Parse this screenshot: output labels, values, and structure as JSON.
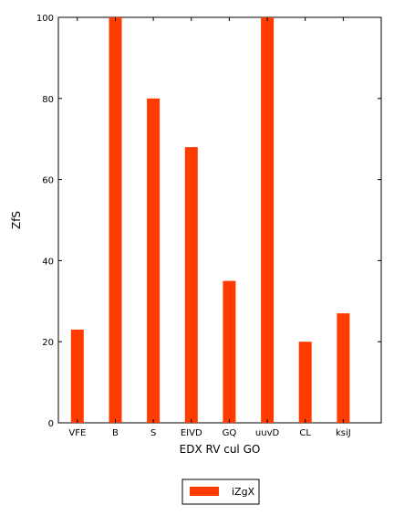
{
  "chart_data": {
    "type": "bar",
    "categories": [
      "VFE",
      "B",
      "S",
      "EIVD",
      "GQ",
      "uuvD",
      "CL",
      "ksiJ"
    ],
    "series": [
      {
        "name": "iZgX",
        "values": [
          23,
          100,
          80,
          68,
          35,
          100,
          20,
          27
        ],
        "color": "#ff3b00"
      }
    ],
    "xlabel": "EDX RV cul GO",
    "ylabel": "ZfS",
    "ylim": [
      0,
      100
    ],
    "yticks": [
      0,
      20,
      40,
      60,
      80,
      100
    ],
    "grid": false,
    "legend_position": "bottom-center"
  }
}
